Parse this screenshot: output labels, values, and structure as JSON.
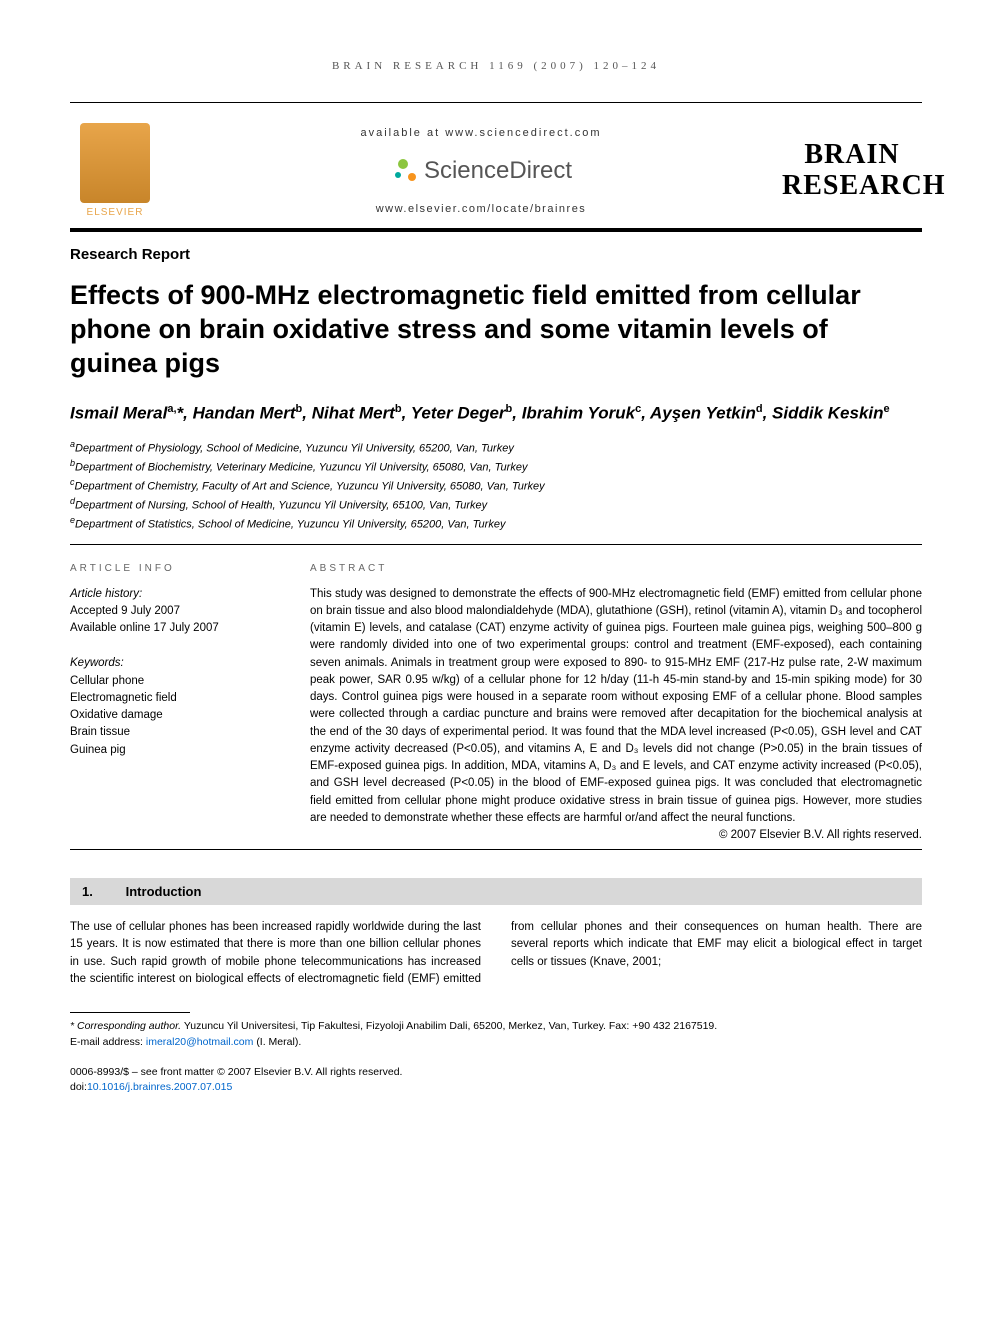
{
  "running_head": "BRAIN RESEARCH 1169 (2007) 120–124",
  "header": {
    "availability": "available at www.sciencedirect.com",
    "sd_brand": "ScienceDirect",
    "journal_url": "www.elsevier.com/locate/brainres",
    "elsevier_label": "ELSEVIER",
    "journal_logo_line1": "BRAIN",
    "journal_logo_line2": "RESEARCH"
  },
  "article_type": "Research Report",
  "title": "Effects of 900-MHz electromagnetic field emitted from cellular phone on brain oxidative stress and some vitamin levels of guinea pigs",
  "authors_html": "Ismail Meral<sup>a,</sup>*, Handan Mert<sup>b</sup>, Nihat Mert<sup>b</sup>, Yeter Deger<sup>b</sup>, Ibrahim Yoruk<sup>c</sup>, Ayşen Yetkin<sup>d</sup>, Siddik Keskin<sup>e</sup>",
  "affiliations": [
    {
      "sup": "a",
      "text": "Department of Physiology, School of Medicine, Yuzuncu Yil University, 65200, Van, Turkey"
    },
    {
      "sup": "b",
      "text": "Department of Biochemistry, Veterinary Medicine, Yuzuncu Yil University, 65080, Van, Turkey"
    },
    {
      "sup": "c",
      "text": "Department of Chemistry, Faculty of Art and Science, Yuzuncu Yil University, 65080, Van, Turkey"
    },
    {
      "sup": "d",
      "text": "Department of Nursing, School of Health, Yuzuncu Yil University, 65100, Van, Turkey"
    },
    {
      "sup": "e",
      "text": "Department of Statistics, School of Medicine, Yuzuncu Yil University, 65200, Van, Turkey"
    }
  ],
  "article_info": {
    "label": "ARTICLE INFO",
    "history_head": "Article history:",
    "accepted": "Accepted 9 July 2007",
    "online": "Available online 17 July 2007",
    "keywords_head": "Keywords:",
    "keywords": [
      "Cellular phone",
      "Electromagnetic field",
      "Oxidative damage",
      "Brain tissue",
      "Guinea pig"
    ]
  },
  "abstract": {
    "label": "ABSTRACT",
    "text": "This study was designed to demonstrate the effects of 900-MHz electromagnetic field (EMF) emitted from cellular phone on brain tissue and also blood malondialdehyde (MDA), glutathione (GSH), retinol (vitamin A), vitamin D₃ and tocopherol (vitamin E) levels, and catalase (CAT) enzyme activity of guinea pigs. Fourteen male guinea pigs, weighing 500–800 g were randomly divided into one of two experimental groups: control and treatment (EMF-exposed), each containing seven animals. Animals in treatment group were exposed to 890- to 915-MHz EMF (217-Hz pulse rate, 2-W maximum peak power, SAR 0.95 w/kg) of a cellular phone for 12 h/day (11-h 45-min stand-by and 15-min spiking mode) for 30 days. Control guinea pigs were housed in a separate room without exposing EMF of a cellular phone. Blood samples were collected through a cardiac puncture and brains were removed after decapitation for the biochemical analysis at the end of the 30 days of experimental period. It was found that the MDA level increased (P<0.05), GSH level and CAT enzyme activity decreased (P<0.05), and vitamins A, E and D₃ levels did not change (P>0.05) in the brain tissues of EMF-exposed guinea pigs. In addition, MDA, vitamins A, D₃ and E levels, and CAT enzyme activity increased (P<0.05), and GSH level decreased (P<0.05) in the blood of EMF-exposed guinea pigs. It was concluded that electromagnetic field emitted from cellular phone might produce oxidative stress in brain tissue of guinea pigs. However, more studies are needed to demonstrate whether these effects are harmful or/and affect the neural functions.",
    "copyright": "© 2007 Elsevier B.V. All rights reserved."
  },
  "intro": {
    "number": "1.",
    "title": "Introduction",
    "col1": "The use of cellular phones has been increased rapidly worldwide during the last 15 years. It is now estimated that there is more than one billion cellular phones in use. Such rapid growth of",
    "col2": "mobile phone telecommunications has increased the scientific interest on biological effects of electromagnetic field (EMF) emitted from cellular phones and their consequences on human health. There are several reports which indicate that EMF may elicit a biological effect in target cells or tissues (Knave, 2001;"
  },
  "corresponding": {
    "label": "* Corresponding author.",
    "text": " Yuzuncu Yil Universitesi, Tip Fakultesi, Fizyoloji Anabilim Dali, 65200, Merkez, Van, Turkey. Fax: +90 432 2167519.",
    "email_label": "E-mail address: ",
    "email": "imeral20@hotmail.com",
    "email_after": " (I. Meral)."
  },
  "footer": {
    "line1": "0006-8993/$ – see front matter © 2007 Elsevier B.V. All rights reserved.",
    "doi_label": "doi:",
    "doi": "10.1016/j.brainres.2007.07.015"
  },
  "colors": {
    "link": "#0066cc",
    "heading_bg": "#d8d8d8",
    "elsevier": "#e8a54a"
  }
}
